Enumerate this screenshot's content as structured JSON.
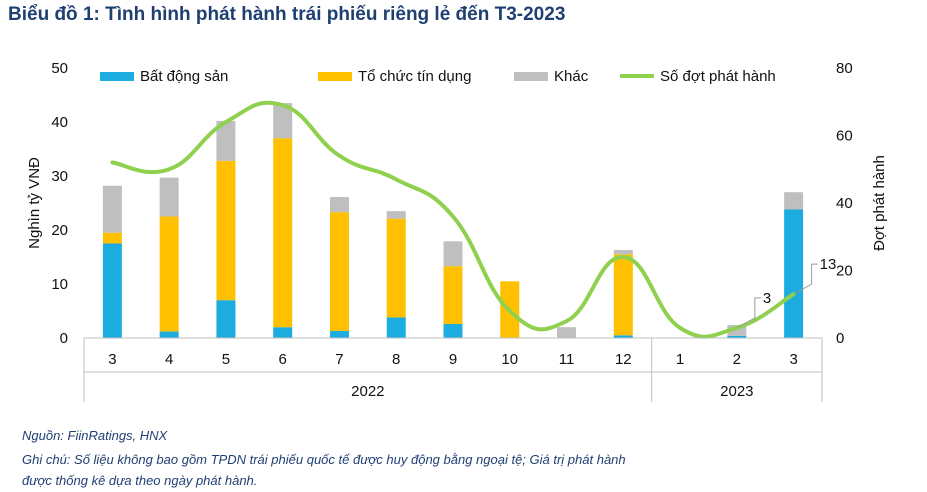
{
  "title": "Biểu đồ 1: Tình hình phát hành trái phiếu riêng lẻ đến T3-2023",
  "source": "Nguồn: FiinRatings, HNX",
  "note_line1": "Ghi chú: Số liệu không bao gồm TPDN trái phiếu quốc tế được huy động bằng ngoại tệ; Giá trị phát hành",
  "note_line2": "được thống kê dựa theo ngày phát hành.",
  "colors": {
    "real_estate": "#1cacdf",
    "credit": "#ffc000",
    "other": "#bfbfbf",
    "line": "#8fd14f"
  },
  "chart_data": {
    "type": "bar",
    "stacked": true,
    "categories": [
      "3",
      "4",
      "5",
      "6",
      "7",
      "8",
      "9",
      "10",
      "11",
      "12",
      "1",
      "2",
      "3"
    ],
    "years": [
      {
        "label": "2022",
        "from": 0,
        "to": 9
      },
      {
        "label": "2023",
        "from": 10,
        "to": 12
      }
    ],
    "series": [
      {
        "name": "Bất động sản",
        "axis": "left",
        "values": [
          17.5,
          1.2,
          7.0,
          2.0,
          1.3,
          3.8,
          2.6,
          0.0,
          0.0,
          0.5,
          0.0,
          0.4,
          23.8
        ]
      },
      {
        "name": "Tổ chức tín dụng",
        "axis": "left",
        "values": [
          2.0,
          21.3,
          25.8,
          35.0,
          22.0,
          18.3,
          10.7,
          10.5,
          0.0,
          15.0,
          0.0,
          0.0,
          0.0
        ]
      },
      {
        "name": "Khác",
        "axis": "left",
        "values": [
          8.7,
          7.2,
          7.4,
          6.5,
          2.8,
          1.4,
          4.6,
          0.0,
          2.0,
          0.8,
          0.0,
          2.0,
          3.2
        ]
      },
      {
        "name": "Số đợt phát hành",
        "type": "line",
        "axis": "right",
        "values": [
          52,
          50,
          64,
          69,
          54,
          47,
          36,
          8,
          5,
          24,
          3,
          3,
          13
        ]
      }
    ],
    "annotations": [
      {
        "index": 11,
        "text": "3"
      },
      {
        "index": 12,
        "text": "13"
      }
    ],
    "ylabel": "Nghìn tỷ VNĐ",
    "y2label": "Đợt phát hành",
    "ylim": [
      0,
      50
    ],
    "y2lim": [
      0,
      80
    ],
    "yticks": [
      0,
      10,
      20,
      30,
      40,
      50
    ],
    "y2ticks": [
      0,
      20,
      40,
      60,
      80
    ],
    "legend_position": "top"
  }
}
